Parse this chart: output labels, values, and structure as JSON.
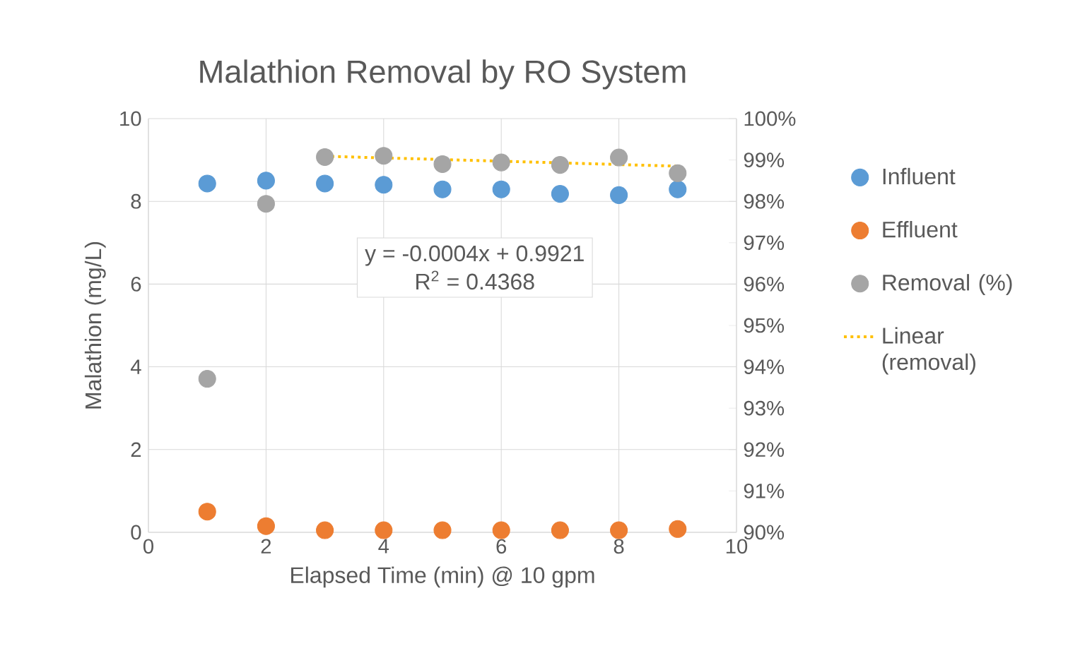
{
  "chart_data": {
    "type": "scatter",
    "title": "Malathion Removal by RO System",
    "xlabel": "Elapsed Time (min) @ 10 gpm",
    "ylabel": "Malathion (mg/L)",
    "x": [
      1,
      2,
      3,
      4,
      5,
      6,
      7,
      8,
      9
    ],
    "series": [
      {
        "name": "Influent",
        "color": "#5b9bd5",
        "values": [
          8.43,
          8.5,
          8.43,
          8.4,
          8.29,
          8.29,
          8.18,
          8.15,
          8.29
        ]
      },
      {
        "name": "Effluent",
        "color": "#ed7d31",
        "values": [
          0.5,
          0.15,
          0.05,
          0.05,
          0.05,
          0.05,
          0.05,
          0.05,
          0.08
        ]
      },
      {
        "name": "Removal (%)",
        "color": "#a5a5a5",
        "axis": "y2",
        "values": [
          93.71,
          97.94,
          99.07,
          99.1,
          98.9,
          98.94,
          98.88,
          99.06,
          98.68
        ]
      },
      {
        "name": "Linear (removal)",
        "color": "#ffc000",
        "axis": "y2",
        "type": "line",
        "line_style": "dotted",
        "marker": "none",
        "x": [
          3,
          9
        ],
        "values": [
          99.09,
          98.85
        ]
      }
    ],
    "marker": "circle",
    "grid": true,
    "legend": "right",
    "xlim": [
      0,
      10
    ],
    "xticks": [
      0,
      2,
      4,
      6,
      8,
      10
    ],
    "ylim": [
      0,
      10
    ],
    "yticks": [
      0,
      2,
      4,
      6,
      8,
      10
    ],
    "y2lim": [
      90,
      100
    ],
    "y2ticks": [
      {
        "value": 90,
        "label": "90%"
      },
      {
        "value": 91,
        "label": "91%"
      },
      {
        "value": 92,
        "label": "92%"
      },
      {
        "value": 93,
        "label": "93%"
      },
      {
        "value": 94,
        "label": "94%"
      },
      {
        "value": 95,
        "label": "95%"
      },
      {
        "value": 96,
        "label": "96%"
      },
      {
        "value": 97,
        "label": "97%"
      },
      {
        "value": 98,
        "label": "98%"
      },
      {
        "value": 99,
        "label": "99%"
      },
      {
        "value": 100,
        "label": "100%"
      }
    ],
    "annotations": [
      "y = -0.0004x + 0.9921",
      "R$^{2}$ = 0.4368"
    ]
  }
}
